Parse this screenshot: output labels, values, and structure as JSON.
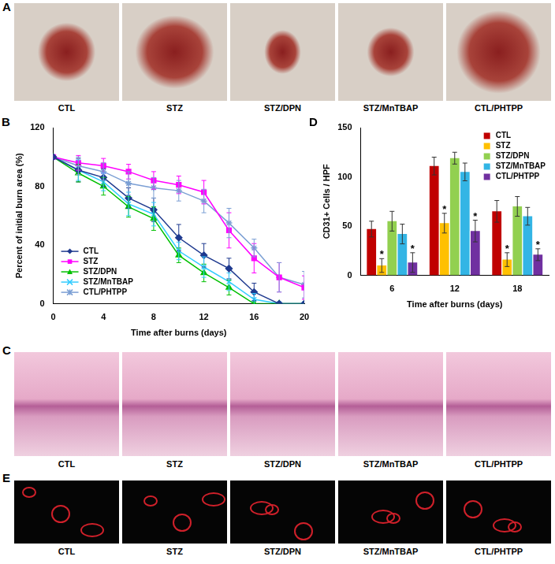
{
  "image_panels": [
    {
      "panel": "A",
      "captions": [
        "CTL",
        "STZ",
        "STZ/DPN",
        "STZ/MnTBAP",
        "CTL/PHTPP"
      ]
    },
    {
      "panel": "C",
      "captions": [
        "CTL",
        "STZ",
        "STZ/DPN",
        "STZ/MnTBAP",
        "CTL/PHTPP"
      ]
    },
    {
      "panel": "E",
      "captions": [
        "CTL",
        "STZ",
        "STZ/DPN",
        "STZ/MnTBAP",
        "CTL/PHTPP"
      ]
    }
  ],
  "chart_data": [
    {
      "panel": "B",
      "type": "line",
      "x_label": "Time after burns (days)",
      "y_label": "Percent of initial burn area (%)",
      "x": [
        0,
        2,
        4,
        6,
        8,
        10,
        12,
        14,
        16,
        18,
        20
      ],
      "series": [
        {
          "name": "CTL",
          "color": "#1f3a8f",
          "marker": "diamond",
          "values": [
            100,
            91,
            86,
            72,
            64,
            45,
            33,
            24,
            8,
            0,
            0
          ],
          "errors": [
            0,
            8,
            6,
            7,
            8,
            9,
            8,
            7,
            6,
            0,
            0
          ]
        },
        {
          "name": "STZ",
          "color": "#ff00ff",
          "marker": "square",
          "values": [
            100,
            96,
            94,
            90,
            84,
            81,
            76,
            50,
            31,
            18,
            11
          ],
          "errors": [
            0,
            5,
            5,
            5,
            6,
            6,
            8,
            12,
            10,
            10,
            8
          ]
        },
        {
          "name": "STZ/DPN",
          "color": "#00c000",
          "marker": "triangle",
          "values": [
            100,
            89,
            80,
            66,
            58,
            33,
            21,
            11,
            0,
            0,
            0
          ],
          "errors": [
            0,
            6,
            6,
            7,
            8,
            5,
            6,
            5,
            0,
            0,
            0
          ]
        },
        {
          "name": "STZ/MnTBAP",
          "color": "#33ccff",
          "marker": "x",
          "values": [
            100,
            91,
            83,
            68,
            61,
            36,
            25,
            15,
            3,
            0,
            0
          ],
          "errors": [
            0,
            7,
            6,
            8,
            8,
            6,
            7,
            6,
            4,
            0,
            0
          ]
        },
        {
          "name": "CTL/PHTPP",
          "color": "#7b9fd4",
          "marker": "star",
          "values": [
            100,
            94,
            90,
            82,
            79,
            77,
            70,
            55,
            38,
            18,
            13
          ],
          "errors": [
            0,
            6,
            6,
            8,
            7,
            7,
            8,
            10,
            6,
            10,
            9
          ]
        }
      ],
      "xlim": [
        0,
        20
      ],
      "xticks": [
        0,
        4,
        8,
        12,
        16,
        20
      ],
      "ylim": [
        0,
        120
      ],
      "yticks": [
        0,
        40,
        80,
        120
      ],
      "grid": false,
      "legend": "lower left"
    },
    {
      "panel": "D",
      "type": "bar",
      "x_label": "Time after burns (days)",
      "y_label": "CD31+ Cells / HPF",
      "categories": [
        "6",
        "12",
        "18"
      ],
      "series": [
        {
          "name": "CTL",
          "color": "#c00000",
          "values": [
            47,
            111,
            65
          ],
          "errors": [
            8,
            9,
            11
          ]
        },
        {
          "name": "STZ",
          "color": "#ffc000",
          "values": [
            10,
            53,
            16
          ],
          "errors": [
            7,
            10,
            7
          ],
          "annotations": [
            "*",
            "*",
            "*"
          ]
        },
        {
          "name": "STZ/DPN",
          "color": "#92d050",
          "values": [
            55,
            119,
            70
          ],
          "errors": [
            10,
            6,
            10
          ]
        },
        {
          "name": "STZ/MnTBAP",
          "color": "#33b5e5",
          "values": [
            42,
            105,
            60
          ],
          "errors": [
            10,
            9,
            9
          ]
        },
        {
          "name": "CTL/PHTPP",
          "color": "#7030a0",
          "values": [
            13,
            45,
            21
          ],
          "errors": [
            10,
            11,
            6
          ],
          "annotations": [
            "*",
            "*",
            "*"
          ]
        }
      ],
      "ylim": [
        0,
        150
      ],
      "yticks": [
        0,
        50,
        100,
        150
      ],
      "grid": false,
      "legend": "upper right"
    }
  ]
}
